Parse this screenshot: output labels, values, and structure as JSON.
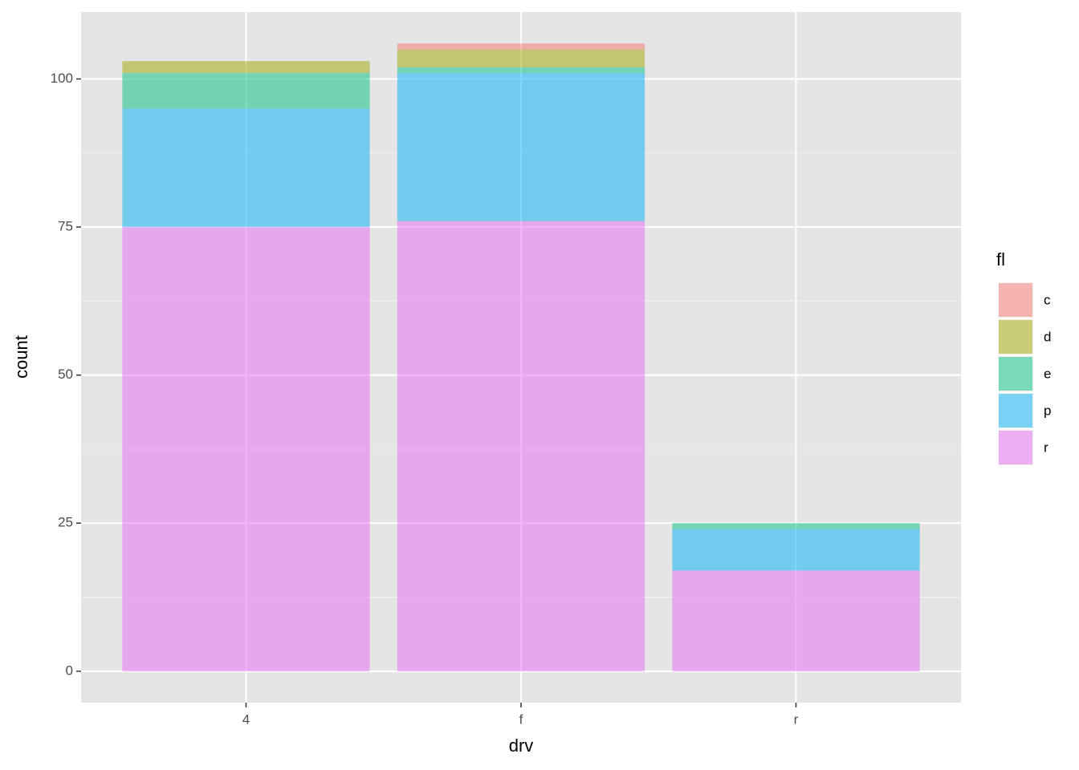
{
  "chart_data": {
    "type": "stacked_bar",
    "x_label": "drv",
    "y_label": "count",
    "legend_title": "fl",
    "categories": [
      "4",
      "f",
      "r"
    ],
    "series": [
      {
        "name": "c",
        "color": "#F8766D",
        "values": [
          0,
          1,
          0
        ]
      },
      {
        "name": "d",
        "color": "#A3A500",
        "values": [
          2,
          3,
          0
        ]
      },
      {
        "name": "e",
        "color": "#00BF7D",
        "values": [
          6,
          1,
          1
        ]
      },
      {
        "name": "p",
        "color": "#00B0F6",
        "values": [
          20,
          25,
          7
        ]
      },
      {
        "name": "r",
        "color": "#E76BF3",
        "values": [
          75,
          76,
          17
        ]
      }
    ],
    "opacity": 0.5,
    "ylim": [
      -5.3,
      111.3
    ],
    "yticks": [
      0,
      25,
      50,
      75,
      100
    ],
    "grid": true,
    "legend": "right"
  }
}
